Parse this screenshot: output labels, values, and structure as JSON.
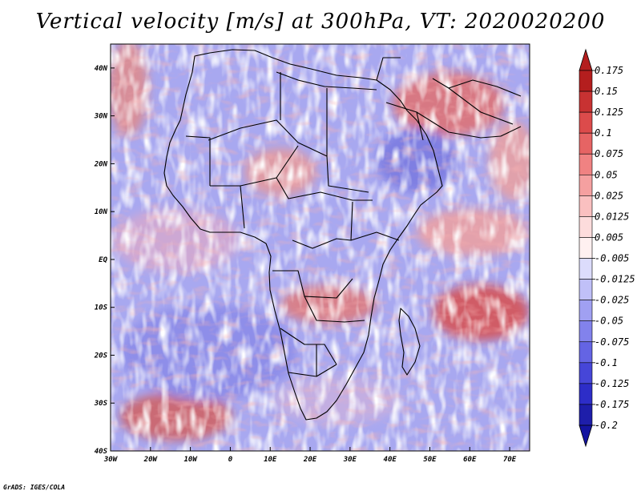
{
  "title": "Vertical velocity [m/s] at 300hPa, VT: 2020020200",
  "credit": "GrADS: IGES/COLA",
  "map": {
    "lon_range": [
      -30,
      75
    ],
    "lat_range": [
      -40,
      45
    ],
    "lon_ticks": [
      {
        "value": -30,
        "label": "30W"
      },
      {
        "value": -20,
        "label": "20W"
      },
      {
        "value": -10,
        "label": "10W"
      },
      {
        "value": 0,
        "label": "0"
      },
      {
        "value": 10,
        "label": "10E"
      },
      {
        "value": 20,
        "label": "20E"
      },
      {
        "value": 30,
        "label": "30E"
      },
      {
        "value": 40,
        "label": "40E"
      },
      {
        "value": 50,
        "label": "50E"
      },
      {
        "value": 60,
        "label": "60E"
      },
      {
        "value": 70,
        "label": "70E"
      }
    ],
    "lat_ticks": [
      {
        "value": 40,
        "label": "40N"
      },
      {
        "value": 30,
        "label": "30N"
      },
      {
        "value": 20,
        "label": "20N"
      },
      {
        "value": 10,
        "label": "10N"
      },
      {
        "value": 0,
        "label": "EQ"
      },
      {
        "value": -10,
        "label": "10S"
      },
      {
        "value": -20,
        "label": "20S"
      },
      {
        "value": -30,
        "label": "30S"
      },
      {
        "value": -40,
        "label": "40S"
      }
    ]
  },
  "colorbar": {
    "levels": [
      {
        "label": "0.175",
        "color": "#b41e1e"
      },
      {
        "label": "0.15",
        "color": "#c83232"
      },
      {
        "label": "0.125",
        "color": "#dc4b4b"
      },
      {
        "label": "0.1",
        "color": "#e66464"
      },
      {
        "label": "0.075",
        "color": "#f08282"
      },
      {
        "label": "0.05",
        "color": "#f5a0a0"
      },
      {
        "label": "0.025",
        "color": "#fac0c0"
      },
      {
        "label": "0.0125",
        "color": "#fddcdc"
      },
      {
        "label": "0.005",
        "color": "#fff0f0"
      },
      {
        "label": "-0.005",
        "color": "#ffffff"
      },
      {
        "label": "-0.0125",
        "color": "#dcdcfc"
      },
      {
        "label": "-0.025",
        "color": "#c0c0f8"
      },
      {
        "label": "-0.05",
        "color": "#a0a0f2"
      },
      {
        "label": "-0.075",
        "color": "#8282ec"
      },
      {
        "label": "-0.1",
        "color": "#6464e4"
      },
      {
        "label": "-0.125",
        "color": "#4646d8"
      },
      {
        "label": "-0.175",
        "color": "#2d2dc8"
      },
      {
        "label": "-0.2",
        "color": "#1e1eaa"
      }
    ],
    "bottom_color": "#1414a0"
  }
}
